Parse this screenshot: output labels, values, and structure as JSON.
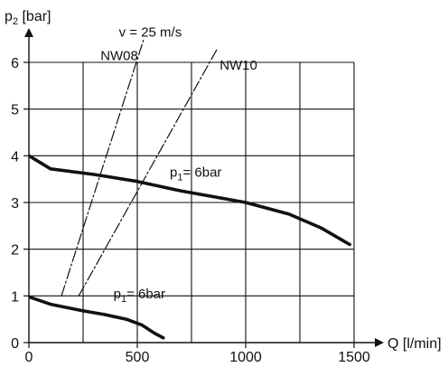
{
  "chart_data": {
    "type": "line",
    "title": "",
    "xlabel": "Q [l/min]",
    "ylabel_main": "p",
    "ylabel_sub": "2",
    "ylabel_unit": " [bar]",
    "xlim": [
      0,
      1500
    ],
    "ylim": [
      0,
      6
    ],
    "grid": true,
    "x_ticks": [
      0,
      500,
      1000,
      1500
    ],
    "y_ticks": [
      0,
      1,
      2,
      3,
      4,
      5,
      6
    ],
    "gridlines_x": [
      0,
      250,
      500,
      750,
      1000,
      1250,
      1500
    ],
    "gridlines_y": [
      0,
      1,
      2,
      3,
      4,
      5,
      6
    ],
    "series": [
      {
        "style": "solid-thick",
        "label_main": "p",
        "label_sub": "1",
        "label_rest": "= 6bar",
        "label_at": [
          650,
          3.55
        ],
        "points": [
          [
            0,
            4.0
          ],
          [
            100,
            3.72
          ],
          [
            300,
            3.6
          ],
          [
            500,
            3.45
          ],
          [
            700,
            3.25
          ],
          [
            1000,
            3.0
          ],
          [
            1200,
            2.75
          ],
          [
            1350,
            2.45
          ],
          [
            1480,
            2.1
          ]
        ]
      },
      {
        "style": "solid-thick",
        "label_main": "p",
        "label_sub": "1",
        "label_rest": "= 6bar",
        "label_at": [
          390,
          0.95
        ],
        "points": [
          [
            0,
            0.98
          ],
          [
            100,
            0.82
          ],
          [
            250,
            0.68
          ],
          [
            350,
            0.6
          ],
          [
            450,
            0.5
          ],
          [
            520,
            0.38
          ],
          [
            580,
            0.2
          ],
          [
            620,
            0.1
          ]
        ]
      },
      {
        "style": "dashdot",
        "label_main": "NW08",
        "label_at": [
          330,
          6.05
        ],
        "points": [
          [
            150,
            1.0
          ],
          [
            530,
            6.5
          ]
        ]
      },
      {
        "style": "dashdot",
        "label_main": "NW10",
        "label_at": [
          880,
          5.85
        ],
        "points": [
          [
            230,
            1.0
          ],
          [
            870,
            6.3
          ]
        ]
      }
    ],
    "annotations": [
      {
        "text": "v = 25 m/s",
        "at": [
          560,
          6.55
        ]
      }
    ]
  }
}
